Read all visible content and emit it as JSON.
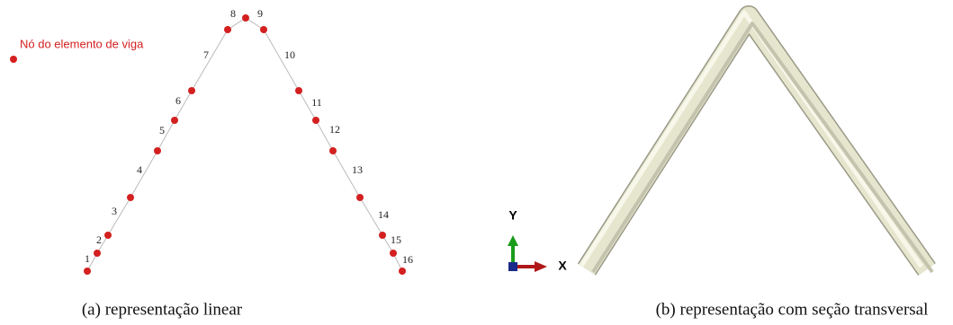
{
  "legend_label": "Nó do elemento de viga",
  "node_labels": [
    "1",
    "2",
    "3",
    "4",
    "5",
    "6",
    "7",
    "8",
    "9",
    "10",
    "11",
    "12",
    "13",
    "14",
    "15",
    "16"
  ],
  "axes": {
    "y": "Y",
    "x": "X"
  },
  "captions": {
    "left": "(a) representação linear",
    "right": "(b) representação com seção transversal"
  }
}
